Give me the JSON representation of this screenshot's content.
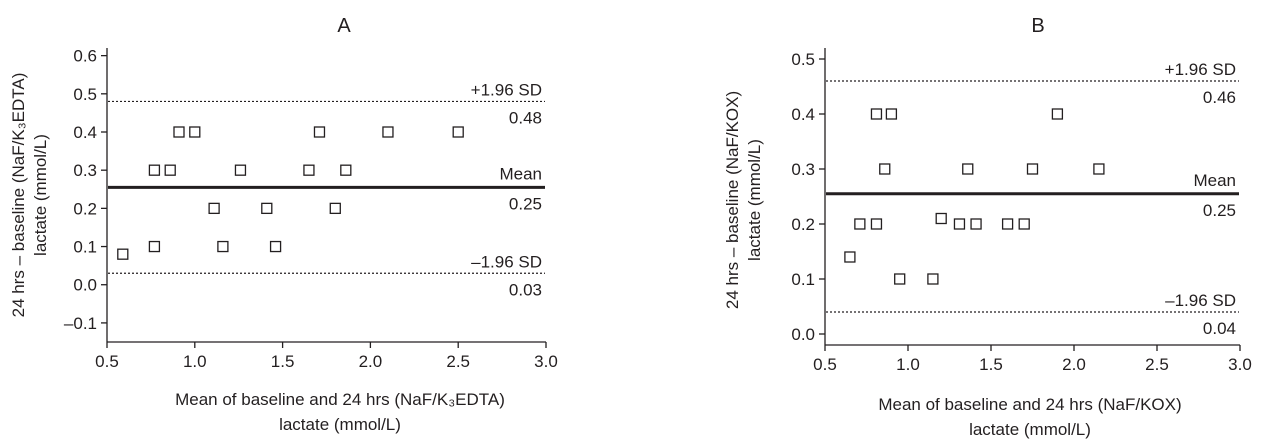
{
  "chart_data": [
    {
      "type": "scatter",
      "title": "A",
      "xlabel_lines": [
        "Mean of baseline and 24 hrs (NaF/K₃EDTA)",
        "lactate (mmol/L)"
      ],
      "ylabel_lines": [
        "24 hrs – baseline (NaF/K₃EDTA)",
        "lactate (mmol/L)"
      ],
      "xlim": [
        0.5,
        3.0
      ],
      "ylim": [
        -0.15,
        0.62
      ],
      "x_ticks": [
        0.5,
        1.0,
        1.5,
        2.0,
        2.5,
        3.0
      ],
      "x_tick_labels": [
        "0.5",
        "1.0",
        "1.5",
        "2.0",
        "2.5",
        "3.0"
      ],
      "y_ticks": [
        -0.1,
        0.0,
        0.1,
        0.2,
        0.3,
        0.4,
        0.5,
        0.6
      ],
      "y_tick_labels": [
        "–0.1",
        "0.0",
        "0.1",
        "0.2",
        "0.3",
        "0.4",
        "0.5",
        "0.6"
      ],
      "points": [
        {
          "x": 0.59,
          "y": 0.08
        },
        {
          "x": 0.77,
          "y": 0.3
        },
        {
          "x": 0.77,
          "y": 0.1
        },
        {
          "x": 0.86,
          "y": 0.3
        },
        {
          "x": 0.91,
          "y": 0.4
        },
        {
          "x": 1.0,
          "y": 0.4
        },
        {
          "x": 1.11,
          "y": 0.2
        },
        {
          "x": 1.16,
          "y": 0.1
        },
        {
          "x": 1.26,
          "y": 0.3
        },
        {
          "x": 1.41,
          "y": 0.2
        },
        {
          "x": 1.46,
          "y": 0.1
        },
        {
          "x": 1.65,
          "y": 0.3
        },
        {
          "x": 1.71,
          "y": 0.4
        },
        {
          "x": 1.8,
          "y": 0.2
        },
        {
          "x": 1.86,
          "y": 0.3
        },
        {
          "x": 2.1,
          "y": 0.4
        },
        {
          "x": 2.5,
          "y": 0.4
        }
      ],
      "mean": 0.255,
      "upper_sd": 0.48,
      "lower_sd": 0.03,
      "mean_name": "Mean",
      "mean_label": "0.25",
      "upper_name": "+1.96 SD",
      "upper_label": "0.48",
      "lower_name": "–1.96 SD",
      "lower_label": "0.03",
      "grid": false
    },
    {
      "type": "scatter",
      "title": "B",
      "xlabel_lines": [
        "Mean of baseline and 24 hrs (NaF/KOX)",
        "lactate (mmol/L)"
      ],
      "ylabel_lines": [
        "24 hrs – baseline (NaF/KOX)",
        "lactate (mmol/L)"
      ],
      "xlim": [
        0.5,
        3.0
      ],
      "ylim": [
        -0.02,
        0.52
      ],
      "x_ticks": [
        0.5,
        1.0,
        1.5,
        2.0,
        2.5,
        3.0
      ],
      "x_tick_labels": [
        "0.5",
        "1.0",
        "1.5",
        "2.0",
        "2.5",
        "3.0"
      ],
      "y_ticks": [
        0.0,
        0.1,
        0.2,
        0.3,
        0.4,
        0.5
      ],
      "y_tick_labels": [
        "0.0",
        "0.1",
        "0.2",
        "0.3",
        "0.4",
        "0.5"
      ],
      "points": [
        {
          "x": 0.65,
          "y": 0.14
        },
        {
          "x": 0.71,
          "y": 0.2
        },
        {
          "x": 0.81,
          "y": 0.2
        },
        {
          "x": 0.81,
          "y": 0.4
        },
        {
          "x": 0.86,
          "y": 0.3
        },
        {
          "x": 0.9,
          "y": 0.4
        },
        {
          "x": 0.95,
          "y": 0.1
        },
        {
          "x": 1.15,
          "y": 0.1
        },
        {
          "x": 1.2,
          "y": 0.21
        },
        {
          "x": 1.31,
          "y": 0.2
        },
        {
          "x": 1.36,
          "y": 0.3
        },
        {
          "x": 1.41,
          "y": 0.2
        },
        {
          "x": 1.6,
          "y": 0.2
        },
        {
          "x": 1.7,
          "y": 0.2
        },
        {
          "x": 1.75,
          "y": 0.3
        },
        {
          "x": 1.9,
          "y": 0.4
        },
        {
          "x": 2.15,
          "y": 0.3
        }
      ],
      "mean": 0.255,
      "upper_sd": 0.46,
      "lower_sd": 0.04,
      "mean_name": "Mean",
      "mean_label": "0.25",
      "upper_name": "+1.96 SD",
      "upper_label": "0.46",
      "lower_name": "–1.96 SD",
      "lower_label": "0.04",
      "grid": false
    }
  ]
}
